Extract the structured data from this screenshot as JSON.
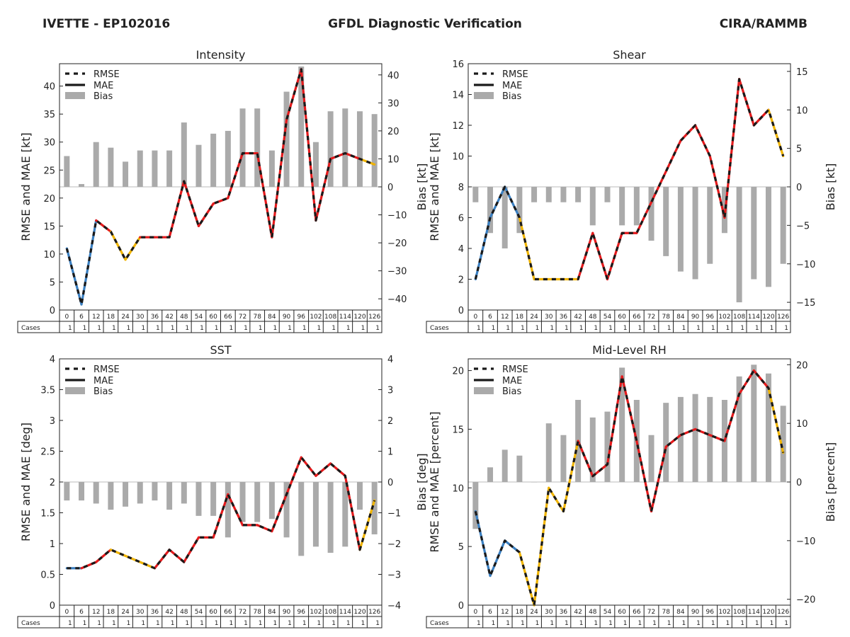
{
  "header": {
    "storm": "IVETTE - EP102016",
    "title": "GFDL Diagnostic Verification",
    "org": "CIRA/RAMMB"
  },
  "legend": {
    "rmse": "RMSE",
    "mae": "MAE",
    "bias": "Bias"
  },
  "colors": {
    "line": "#1a1a1a",
    "seg_good": "#e41a1c",
    "seg_mid": "#f0b400",
    "seg_bad": "#3a7fc1",
    "bias_bar": "#aaaaaa"
  },
  "table": {
    "cases_label": "Cases",
    "hours": [
      "0",
      "6",
      "12",
      "18",
      "24",
      "30",
      "36",
      "42",
      "48",
      "54",
      "60",
      "66",
      "72",
      "78",
      "84",
      "90",
      "96",
      "102",
      "108",
      "114",
      "120",
      "126"
    ],
    "cases": [
      1,
      1,
      1,
      1,
      1,
      1,
      1,
      1,
      1,
      1,
      1,
      1,
      1,
      1,
      1,
      1,
      1,
      1,
      1,
      1,
      1,
      1
    ]
  },
  "chart_data": [
    {
      "type": "line",
      "title": "Intensity",
      "ylabel": "RMSE and MAE [kt]",
      "ylabel2": "Bias [kt]",
      "ylim": [
        0,
        44
      ],
      "yticks": [
        0,
        5,
        10,
        15,
        20,
        25,
        30,
        35,
        40
      ],
      "ylim2": [
        -44,
        44
      ],
      "yticks2": [
        -40,
        -30,
        -20,
        -10,
        0,
        10,
        20,
        30,
        40
      ],
      "x": [
        0,
        6,
        12,
        18,
        24,
        30,
        36,
        42,
        48,
        54,
        60,
        66,
        72,
        78,
        84,
        90,
        96,
        102,
        108,
        114,
        120,
        126
      ],
      "error": [
        11,
        1,
        16,
        14,
        9,
        13,
        13,
        13,
        23,
        15,
        19,
        20,
        28,
        28,
        13,
        34,
        43,
        16,
        27,
        28,
        27,
        26
      ],
      "bias": [
        11,
        1,
        16,
        14,
        9,
        13,
        13,
        13,
        23,
        15,
        19,
        20,
        28,
        28,
        13,
        34,
        43,
        16,
        27,
        28,
        27,
        26
      ],
      "segment_colors": [
        "bad",
        "bad",
        "good",
        "mid",
        "mid",
        "good",
        "good",
        "good",
        "good",
        "good",
        "good",
        "good",
        "good",
        "good",
        "good",
        "good",
        "good",
        "good",
        "good",
        "good",
        "mid"
      ]
    },
    {
      "type": "line",
      "title": "Shear",
      "ylabel": "RMSE and MAE [kt]",
      "ylabel2": "Bias [kt]",
      "ylim": [
        0,
        16
      ],
      "yticks": [
        0,
        2,
        4,
        6,
        8,
        10,
        12,
        14,
        16
      ],
      "ylim2": [
        -16,
        16
      ],
      "yticks2": [
        -15,
        -10,
        -5,
        0,
        5,
        10,
        15
      ],
      "x": [
        0,
        6,
        12,
        18,
        24,
        30,
        36,
        42,
        48,
        54,
        60,
        66,
        72,
        78,
        84,
        90,
        96,
        102,
        108,
        114,
        120,
        126
      ],
      "error": [
        2,
        6,
        8,
        6,
        2,
        2,
        2,
        2,
        5,
        2,
        5,
        5,
        7,
        9,
        11,
        12,
        10,
        6,
        15,
        12,
        13,
        10
      ],
      "bias": [
        -2,
        -6,
        -8,
        -6,
        -2,
        -2,
        -2,
        -2,
        -5,
        -2,
        -5,
        -5,
        -7,
        -9,
        -11,
        -12,
        -10,
        -6,
        -15,
        -12,
        -13,
        -10
      ],
      "segment_colors": [
        "bad",
        "bad",
        "bad",
        "mid",
        "mid",
        "mid",
        "mid",
        "good",
        "good",
        "good",
        "good",
        "good",
        "good",
        "good",
        "good",
        "good",
        "good",
        "good",
        "good",
        "good",
        "mid"
      ]
    },
    {
      "type": "line",
      "title": "SST",
      "ylabel": "RMSE and MAE [deg]",
      "ylabel2": "Bias [deg]",
      "ylim": [
        0,
        4
      ],
      "yticks": [
        0.0,
        0.5,
        1.0,
        1.5,
        2.0,
        2.5,
        3.0,
        3.5,
        4.0
      ],
      "ylim2": [
        -4,
        4
      ],
      "yticks2": [
        -4,
        -3,
        -2,
        -1,
        0,
        1,
        2,
        3,
        4
      ],
      "x": [
        0,
        6,
        12,
        18,
        24,
        30,
        36,
        42,
        48,
        54,
        60,
        66,
        72,
        78,
        84,
        90,
        96,
        102,
        108,
        114,
        120,
        126
      ],
      "error": [
        0.6,
        0.6,
        0.7,
        0.9,
        0.8,
        0.7,
        0.6,
        0.9,
        0.7,
        1.1,
        1.1,
        1.8,
        1.3,
        1.3,
        1.2,
        1.8,
        2.4,
        2.1,
        2.3,
        2.1,
        0.9,
        1.7
      ],
      "bias": [
        -0.6,
        -0.6,
        -0.7,
        -0.9,
        -0.8,
        -0.7,
        -0.6,
        -0.9,
        -0.7,
        -1.1,
        -1.1,
        -1.8,
        -1.3,
        -1.3,
        -1.2,
        -1.8,
        -2.4,
        -2.1,
        -2.3,
        -2.1,
        -0.9,
        -1.7
      ],
      "segment_colors": [
        "bad",
        "good",
        "good",
        "mid",
        "mid",
        "mid",
        "good",
        "good",
        "good",
        "good",
        "good",
        "good",
        "good",
        "good",
        "good",
        "good",
        "good",
        "good",
        "good",
        "good",
        "mid"
      ]
    },
    {
      "type": "line",
      "title": "Mid-Level RH",
      "ylabel": "RMSE and MAE [percent]",
      "ylabel2": "Bias [percent]",
      "ylim": [
        0,
        21
      ],
      "yticks": [
        0,
        5,
        10,
        15,
        20
      ],
      "ylim2": [
        -21,
        21
      ],
      "yticks2": [
        -20,
        -10,
        0,
        10,
        20
      ],
      "x": [
        0,
        6,
        12,
        18,
        24,
        30,
        36,
        42,
        48,
        54,
        60,
        66,
        72,
        78,
        84,
        90,
        96,
        102,
        108,
        114,
        120,
        126
      ],
      "error": [
        8,
        2.5,
        5.5,
        4.5,
        0,
        10,
        8,
        14,
        11,
        12,
        19.5,
        14,
        8,
        13.5,
        14.5,
        15,
        14.5,
        14,
        18,
        20,
        18.5,
        13
      ],
      "bias": [
        -8,
        2.5,
        5.5,
        4.5,
        0,
        10,
        8,
        14,
        11,
        12,
        19.5,
        14,
        8,
        13.5,
        14.5,
        15,
        14.5,
        14,
        18,
        20,
        18.5,
        13
      ],
      "segment_colors": [
        "bad",
        "bad",
        "bad",
        "mid",
        "mid",
        "mid",
        "mid",
        "good",
        "good",
        "good",
        "good",
        "good",
        "good",
        "good",
        "good",
        "good",
        "good",
        "good",
        "good",
        "good",
        "mid"
      ]
    }
  ]
}
